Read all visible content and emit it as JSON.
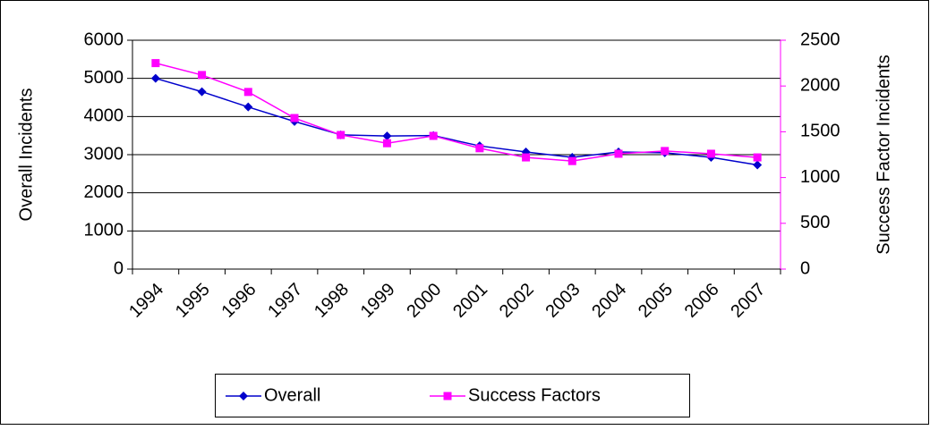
{
  "chart_data": {
    "type": "line",
    "categories": [
      "1994",
      "1995",
      "1996",
      "1997",
      "1998",
      "1999",
      "2000",
      "2001",
      "2002",
      "2003",
      "2004",
      "2005",
      "2006",
      "2007"
    ],
    "series": [
      {
        "name": "Overall",
        "color": "#0000cc",
        "marker": "diamond",
        "values": [
          5000,
          4650,
          4250,
          3870,
          3520,
          3490,
          3500,
          3230,
          3070,
          2930,
          3070,
          3050,
          2930,
          2730
        ]
      },
      {
        "name": "Success Factors",
        "color": "#ff00ff",
        "marker": "square",
        "axis": "y2",
        "values": [
          2250,
          2120,
          1935,
          1650,
          1465,
          1375,
          1455,
          1320,
          1220,
          1180,
          1260,
          1290,
          1260,
          1220
        ]
      }
    ],
    "ylabel": "Overall Incidents",
    "y2label": "Success Factor Incidents",
    "ylim": [
      0,
      6000
    ],
    "yticks": [
      0,
      1000,
      2000,
      3000,
      4000,
      5000,
      6000
    ],
    "y2lim": [
      0,
      2500
    ],
    "y2ticks": [
      0,
      500,
      1000,
      1500,
      2000,
      2500
    ],
    "grid": true,
    "legend": "bottom"
  }
}
